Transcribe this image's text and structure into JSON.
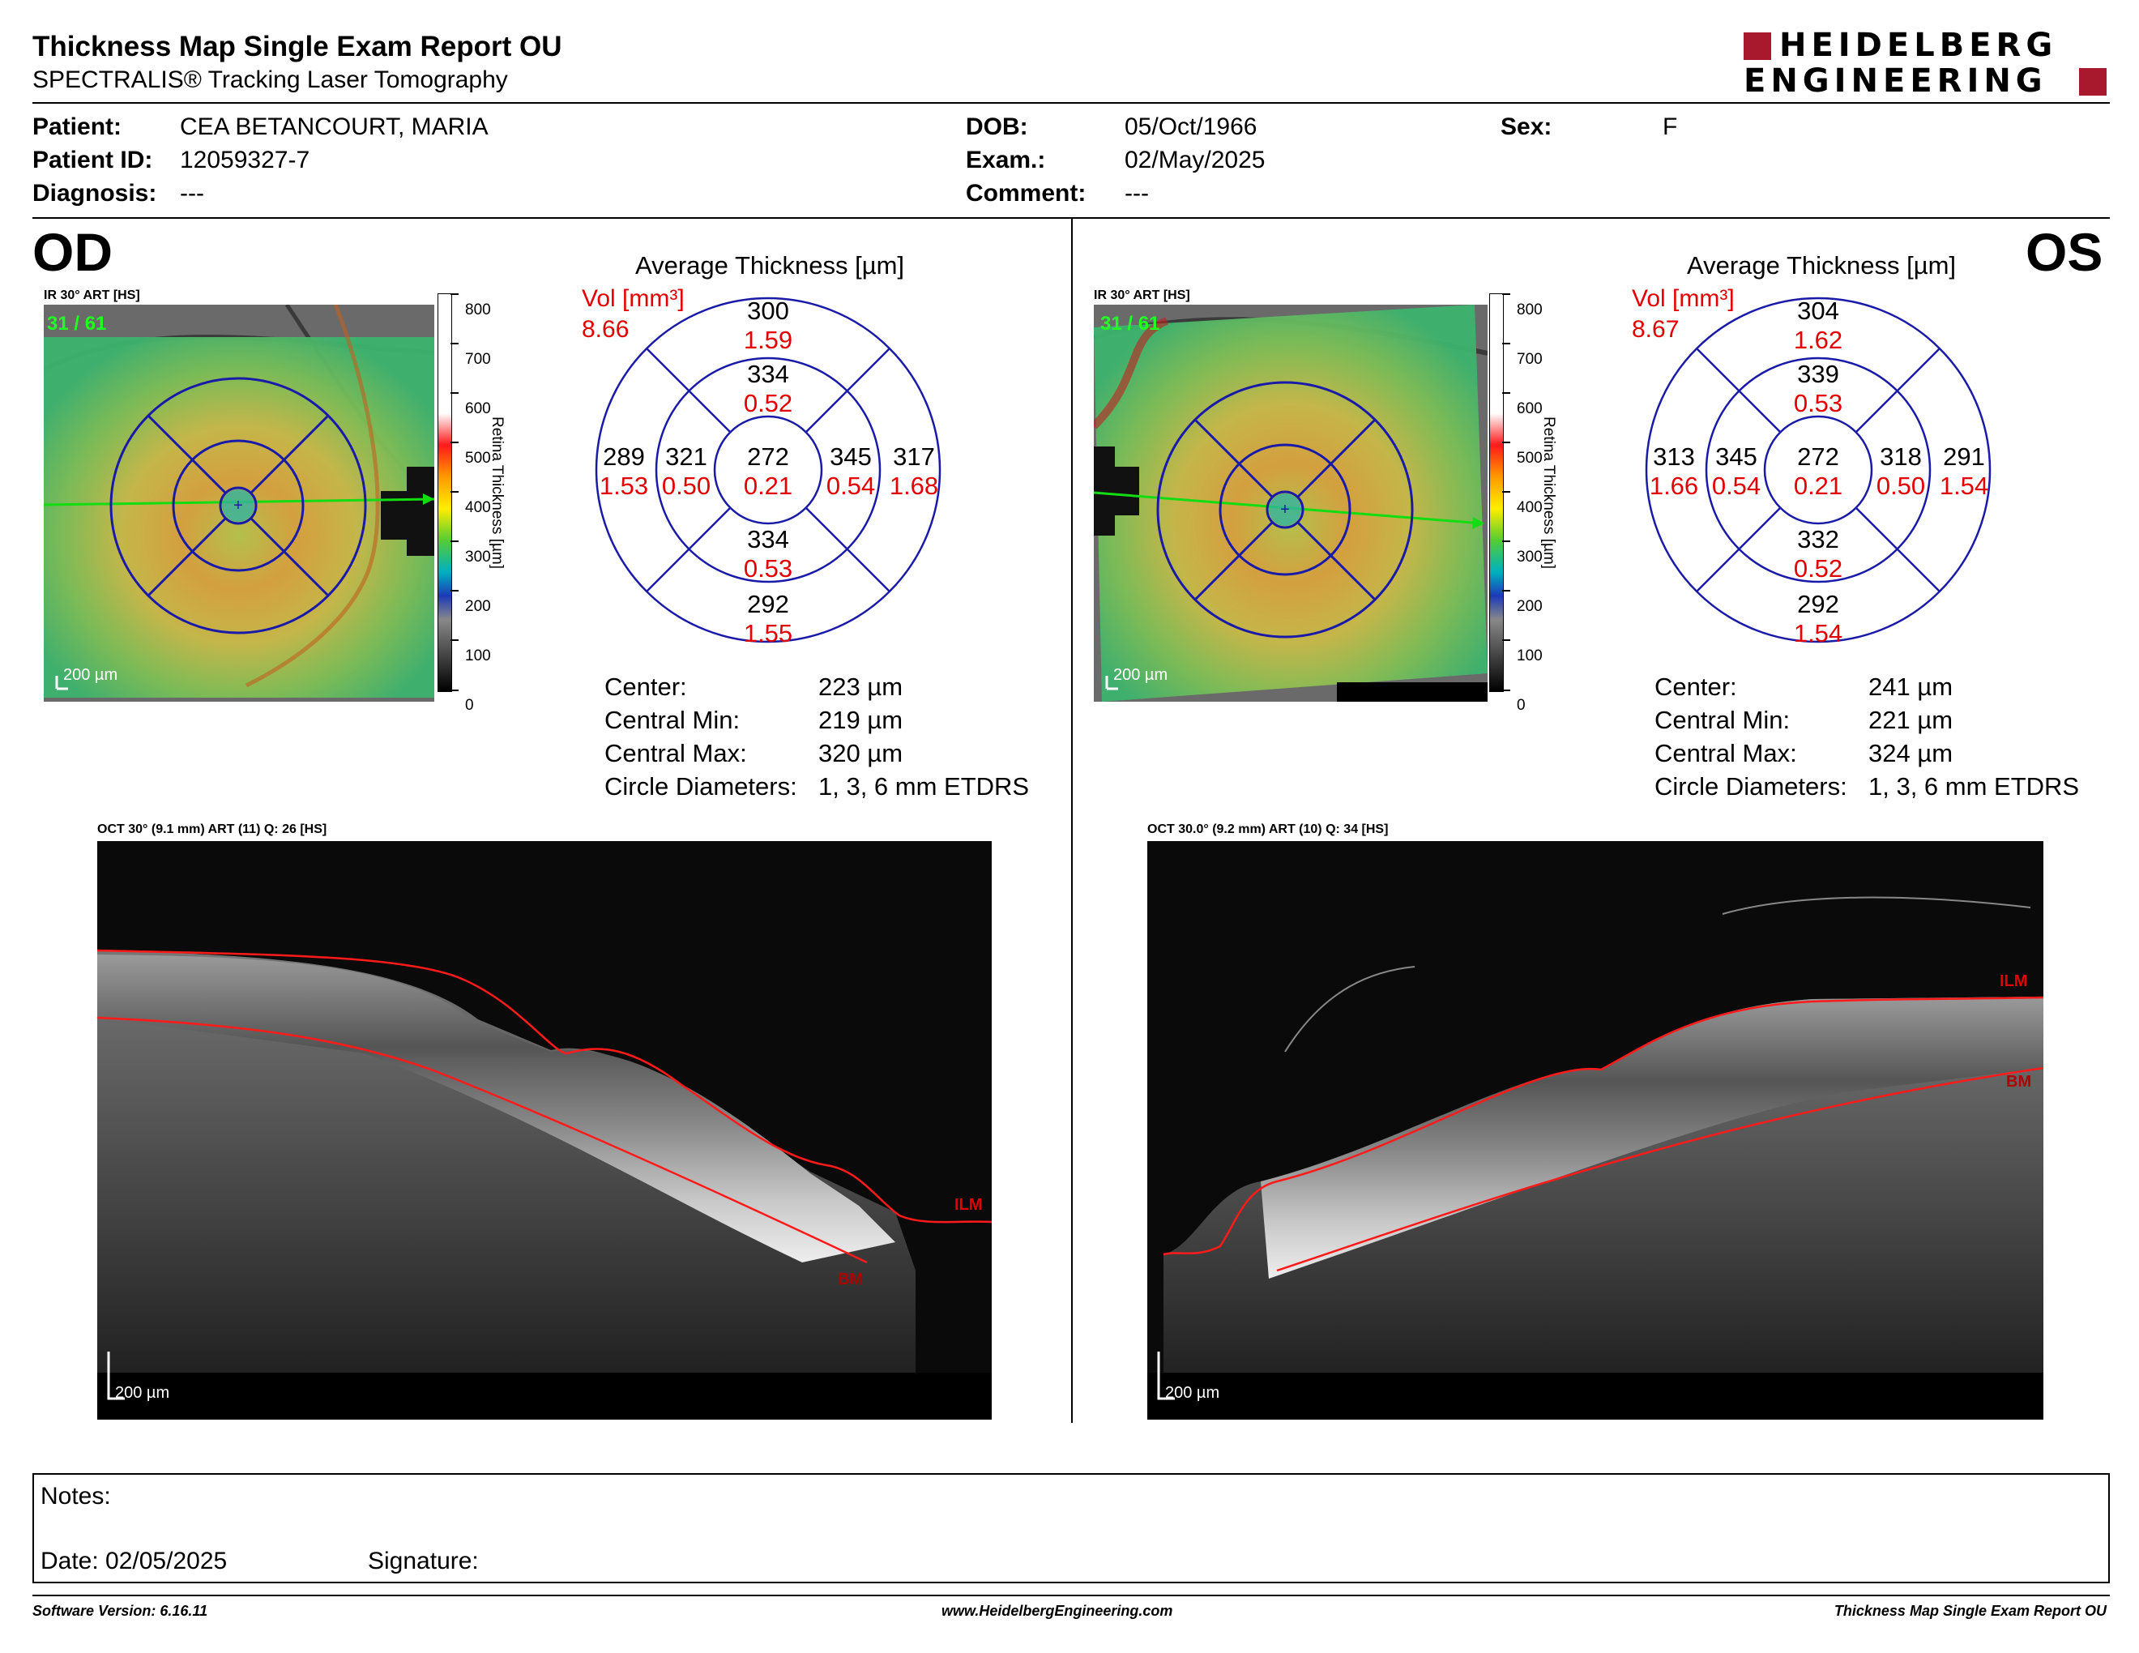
{
  "header": {
    "title": "Thickness Map Single Exam Report OU",
    "subtitle": "SPECTRALIS® Tracking Laser Tomography",
    "logo_line1": "HEIDELBERG",
    "logo_line2": "ENGINEERING"
  },
  "patient": {
    "patient_label": "Patient:",
    "patient_value": "CEA BETANCOURT, MARIA",
    "id_label": "Patient ID:",
    "id_value": "12059327-7",
    "diagnosis_label": "Diagnosis:",
    "diagnosis_value": "---",
    "dob_label": "DOB:",
    "dob_value": "05/Oct/1966",
    "exam_label": "Exam.:",
    "exam_value": "02/May/2025",
    "comment_label": "Comment:",
    "comment_value": "---",
    "sex_label": "Sex:",
    "sex_value": "F"
  },
  "colorbar": {
    "ticks": [
      "800",
      "700",
      "600",
      "500",
      "400",
      "300",
      "200",
      "100",
      "0"
    ],
    "label": "Retina Thickness [µm]"
  },
  "od": {
    "eye": "OD",
    "fundus_title": "IR 30° ART [HS]",
    "fundus_counter": "31 / 61",
    "scale_label": "200 µm",
    "chart_title": "Average Thickness [µm]",
    "vol_label": "Vol [mm³]",
    "vol_total": "8.66",
    "sectors": {
      "outer_sup": {
        "thk": "300",
        "vol": "1.59"
      },
      "inner_sup": {
        "thk": "334",
        "vol": "0.52"
      },
      "outer_temp": {
        "thk": "289",
        "vol": "1.53"
      },
      "inner_temp": {
        "thk": "321",
        "vol": "0.50"
      },
      "center": {
        "thk": "272",
        "vol": "0.21"
      },
      "inner_nas": {
        "thk": "345",
        "vol": "0.54"
      },
      "outer_nas": {
        "thk": "317",
        "vol": "1.68"
      },
      "inner_inf": {
        "thk": "334",
        "vol": "0.53"
      },
      "outer_inf": {
        "thk": "292",
        "vol": "1.55"
      }
    },
    "stats": [
      {
        "label": "Center:",
        "value": "223 µm"
      },
      {
        "label": "Central Min:",
        "value": "219 µm"
      },
      {
        "label": "Central Max:",
        "value": "320 µm"
      },
      {
        "label": "Circle Diameters:",
        "value": "1, 3, 6 mm ETDRS"
      }
    ],
    "oct_title": "OCT 30° (9.1 mm) ART (11) Q: 26 [HS]",
    "oct_scale": "200 µm",
    "ilm_label": "ILM",
    "bm_label": "BM"
  },
  "os": {
    "eye": "OS",
    "fundus_title": "IR 30° ART [HS]",
    "fundus_counter": "31 / 61",
    "scale_label": "200 µm",
    "chart_title": "Average Thickness [µm]",
    "vol_label": "Vol [mm³]",
    "vol_total": "8.67",
    "sectors": {
      "outer_sup": {
        "thk": "304",
        "vol": "1.62"
      },
      "inner_sup": {
        "thk": "339",
        "vol": "0.53"
      },
      "outer_temp": {
        "thk": "313",
        "vol": "1.66"
      },
      "inner_temp": {
        "thk": "345",
        "vol": "0.54"
      },
      "center": {
        "thk": "272",
        "vol": "0.21"
      },
      "inner_nas": {
        "thk": "318",
        "vol": "0.50"
      },
      "outer_nas": {
        "thk": "291",
        "vol": "1.54"
      },
      "inner_inf": {
        "thk": "332",
        "vol": "0.52"
      },
      "outer_inf": {
        "thk": "292",
        "vol": "1.54"
      }
    },
    "stats": [
      {
        "label": "Center:",
        "value": "241 µm"
      },
      {
        "label": "Central Min:",
        "value": "221 µm"
      },
      {
        "label": "Central Max:",
        "value": "324 µm"
      },
      {
        "label": "Circle Diameters:",
        "value": "1, 3, 6 mm ETDRS"
      }
    ],
    "oct_title": "OCT 30.0° (9.2 mm) ART (10) Q: 34 [HS]",
    "oct_scale": "200 µm",
    "ilm_label": "ILM",
    "bm_label": "BM"
  },
  "notes": {
    "notes_label": "Notes:",
    "date_label": "Date: 02/05/2025",
    "signature_label": "Signature:"
  },
  "footer": {
    "software": "Software Version: 6.16.11",
    "website": "www.HeidelbergEngineering.com",
    "report_name": "Thickness Map Single Exam Report OU"
  },
  "colors": {
    "ring": "#1a1aa8",
    "red_text": "#e30000",
    "logo_red": "#a8192e",
    "scan_line": "#00ee00",
    "ilm_line": "#ff1a1a"
  }
}
